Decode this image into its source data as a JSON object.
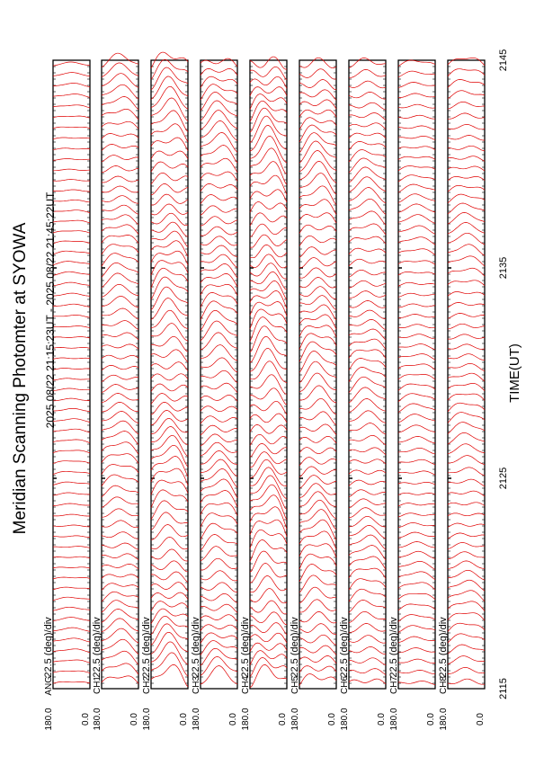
{
  "title": "Meridian Scanning Photomter at SYOWA",
  "subtitle": "2025 08/22 21:15:23UT - 2025 08/22 21:45:22UT",
  "xlabel": "TIME(UT)",
  "colors": {
    "trace": "#e00000",
    "frame": "#000000"
  },
  "chart_data": {
    "type": "line",
    "title": "Meridian Scanning Photomter at SYOWA",
    "subtitle": "2025 08/22 21:15:23UT - 2025 08/22 21:45:22UT",
    "xlabel": "TIME(UT)",
    "x_ticks": [
      "2115",
      "2125",
      "2135",
      "2145"
    ],
    "xlim": [
      "2115",
      "2145"
    ],
    "scale_label": "22.5 (deg)/div",
    "y_ticks": [
      "180.0",
      "0.0"
    ],
    "ylim": [
      0.0,
      180.0
    ],
    "grid": false,
    "panels": [
      {
        "channel": "ANG",
        "amp": 0.15,
        "sharp": 1.0,
        "phase": 0.0,
        "n_traces": 60
      },
      {
        "channel": "CH1",
        "amp": 0.55,
        "sharp": 1.2,
        "phase": 0.3,
        "n_traces": 60
      },
      {
        "channel": "CH2",
        "amp": 0.85,
        "sharp": 1.4,
        "phase": 1.1,
        "n_traces": 60
      },
      {
        "channel": "CH3",
        "amp": 0.75,
        "sharp": 1.3,
        "phase": 2.0,
        "n_traces": 60
      },
      {
        "channel": "CH4",
        "amp": 0.95,
        "sharp": 1.6,
        "phase": 2.7,
        "n_traces": 60
      },
      {
        "channel": "CH5",
        "amp": 0.8,
        "sharp": 1.4,
        "phase": 3.4,
        "n_traces": 60
      },
      {
        "channel": "CH6",
        "amp": 0.6,
        "sharp": 1.2,
        "phase": 4.1,
        "n_traces": 60
      },
      {
        "channel": "CH7",
        "amp": 0.35,
        "sharp": 1.0,
        "phase": 4.8,
        "n_traces": 60
      },
      {
        "channel": "CH8",
        "amp": 0.45,
        "sharp": 1.1,
        "phase": 5.5,
        "n_traces": 60
      }
    ]
  }
}
